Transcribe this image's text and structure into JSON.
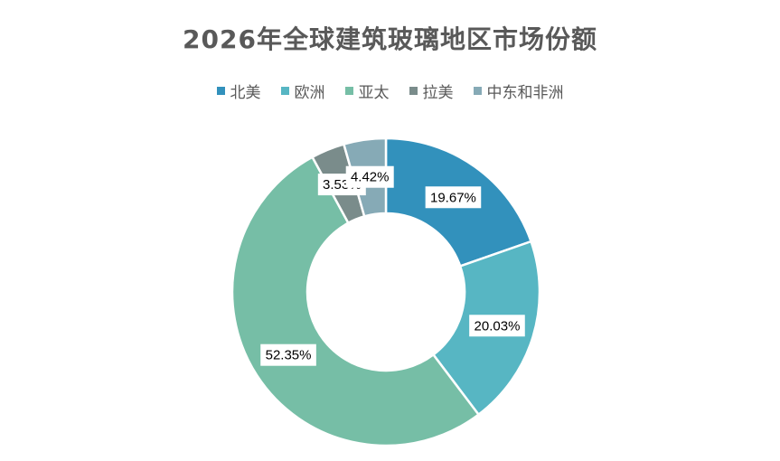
{
  "chart_data": {
    "type": "pie",
    "variant": "doughnut",
    "title": "2026年全球建筑玻璃地区市场份额",
    "categories": [
      "北美",
      "欧洲",
      "亚太",
      "拉美",
      "中东和非洲"
    ],
    "values": [
      19.67,
      20.03,
      52.35,
      3.53,
      4.42
    ],
    "labels": [
      "19.67%",
      "20.03%",
      "52.35%",
      "3.53%",
      "4.42%"
    ],
    "colors": [
      "#3291BC",
      "#57B6C3",
      "#76BEA6",
      "#7A8C8B",
      "#86AAB6"
    ],
    "legend_position": "top",
    "start_angle_deg": 0,
    "direction": "clockwise"
  }
}
